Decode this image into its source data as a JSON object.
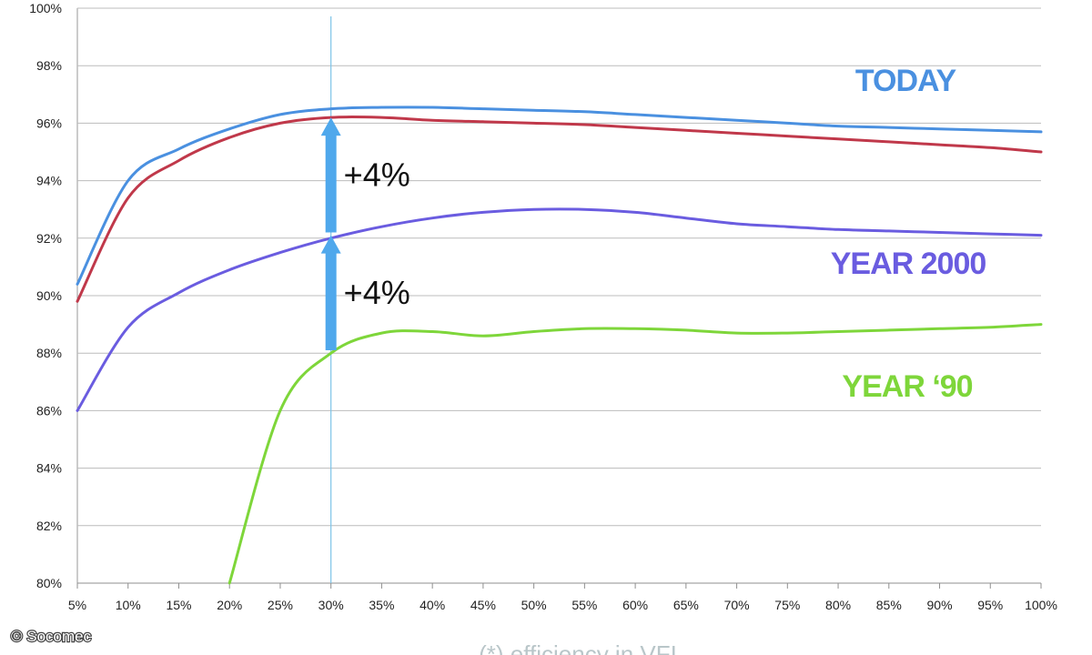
{
  "chart_data": {
    "type": "line",
    "x": [
      5,
      10,
      15,
      20,
      25,
      30,
      35,
      40,
      45,
      50,
      55,
      60,
      65,
      70,
      75,
      80,
      85,
      90,
      95,
      100
    ],
    "x_tick_labels": [
      "5%",
      "10%",
      "15%",
      "20%",
      "25%",
      "30%",
      "35%",
      "40%",
      "45%",
      "50%",
      "55%",
      "60%",
      "65%",
      "70%",
      "75%",
      "80%",
      "85%",
      "90%",
      "95%",
      "100%"
    ],
    "y_tick_labels": [
      "80%",
      "82%",
      "84%",
      "86%",
      "88%",
      "90%",
      "92%",
      "94%",
      "96%",
      "98%",
      "100%"
    ],
    "xlim": [
      5,
      100
    ],
    "ylim": [
      80,
      100
    ],
    "grid": "horizontal",
    "series": [
      {
        "name": "TODAY",
        "color": "#4a90e0",
        "values": [
          90.4,
          94.0,
          95.1,
          95.8,
          96.3,
          96.5,
          96.55,
          96.55,
          96.5,
          96.45,
          96.4,
          96.3,
          96.2,
          96.1,
          96.0,
          95.9,
          95.85,
          95.8,
          95.75,
          95.7
        ]
      },
      {
        "color": "#c0384a",
        "values": [
          89.8,
          93.4,
          94.7,
          95.5,
          96.0,
          96.2,
          96.2,
          96.1,
          96.05,
          96.0,
          95.95,
          95.85,
          95.75,
          95.65,
          95.55,
          95.45,
          95.35,
          95.25,
          95.15,
          95.0
        ]
      },
      {
        "name": "YEAR 2000",
        "color": "#6a5ce0",
        "values": [
          86.0,
          88.9,
          90.1,
          90.9,
          91.5,
          92.0,
          92.4,
          92.7,
          92.9,
          93.0,
          93.0,
          92.9,
          92.7,
          92.5,
          92.4,
          92.3,
          92.25,
          92.2,
          92.15,
          92.1
        ]
      },
      {
        "name": "YEAR ‘90",
        "color": "#7ed63a",
        "values": [
          null,
          null,
          null,
          80.0,
          86.0,
          88.0,
          88.7,
          88.75,
          88.6,
          88.75,
          88.85,
          88.85,
          88.8,
          88.7,
          88.7,
          88.75,
          88.8,
          88.85,
          88.9,
          89.0
        ]
      }
    ],
    "marker_line_x": 30,
    "annotations": [
      {
        "text": "+4%",
        "x": 30,
        "y_from": 92.2,
        "y_to": 96.2,
        "color": "#4fa8ec"
      },
      {
        "text": "+4%",
        "x": 30,
        "y_from": 88.1,
        "y_to": 92.1,
        "color": "#4fa8ec"
      }
    ]
  },
  "footnote": "(*) efficiency in  VFI",
  "credit": "© Socomec"
}
